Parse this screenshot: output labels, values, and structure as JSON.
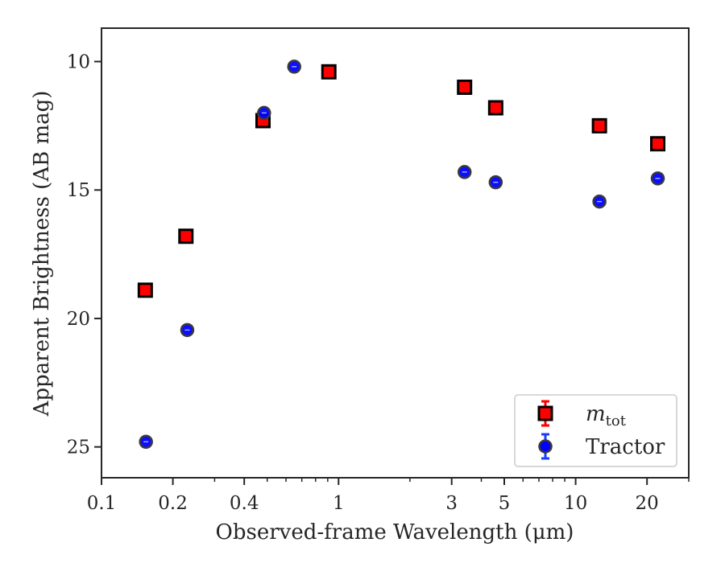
{
  "chart_data": {
    "type": "scatter",
    "xlabel": "Observed-frame Wavelength (μm)",
    "ylabel": "Apparent Brightness (AB mag)",
    "x_scale": "log",
    "xlim": [
      0.1,
      30
    ],
    "ylim": [
      26.2,
      8.7
    ],
    "y_inverted": true,
    "grid": false,
    "legend_position": "bottom-right",
    "x_ticks": [
      {
        "value": 0.1,
        "label": "0.1"
      },
      {
        "value": 0.2,
        "label": "0.2"
      },
      {
        "value": 0.4,
        "label": "0.4"
      },
      {
        "value": 1,
        "label": "1"
      },
      {
        "value": 3,
        "label": "3"
      },
      {
        "value": 5,
        "label": "5"
      },
      {
        "value": 10,
        "label": "10"
      },
      {
        "value": 20,
        "label": "20"
      }
    ],
    "y_ticks": [
      {
        "value": 10,
        "label": "10"
      },
      {
        "value": 15,
        "label": "15"
      },
      {
        "value": 20,
        "label": "20"
      },
      {
        "value": 25,
        "label": "25"
      }
    ],
    "series": [
      {
        "name": "m_tot",
        "label_main": "m",
        "label_sub": "tot",
        "marker": "square",
        "color": "#ff0000",
        "edge_color": "#000000",
        "error_color": "#ff0000",
        "x": [
          0.153,
          0.227,
          0.48,
          0.91,
          3.4,
          4.6,
          12.6,
          22.2
        ],
        "y": [
          18.9,
          16.8,
          12.3,
          10.4,
          11.0,
          11.8,
          12.5,
          13.2
        ]
      },
      {
        "name": "Tractor",
        "label_main": "Tractor",
        "label_sub": "",
        "marker": "circle",
        "color": "#0000ff",
        "edge_color": "#3a3a3a",
        "error_color": "#1a3cff",
        "x": [
          0.154,
          0.23,
          0.485,
          0.65,
          3.4,
          4.6,
          12.6,
          22.2
        ],
        "y": [
          24.8,
          20.45,
          12.0,
          10.2,
          14.3,
          14.7,
          15.45,
          14.55
        ]
      }
    ]
  }
}
